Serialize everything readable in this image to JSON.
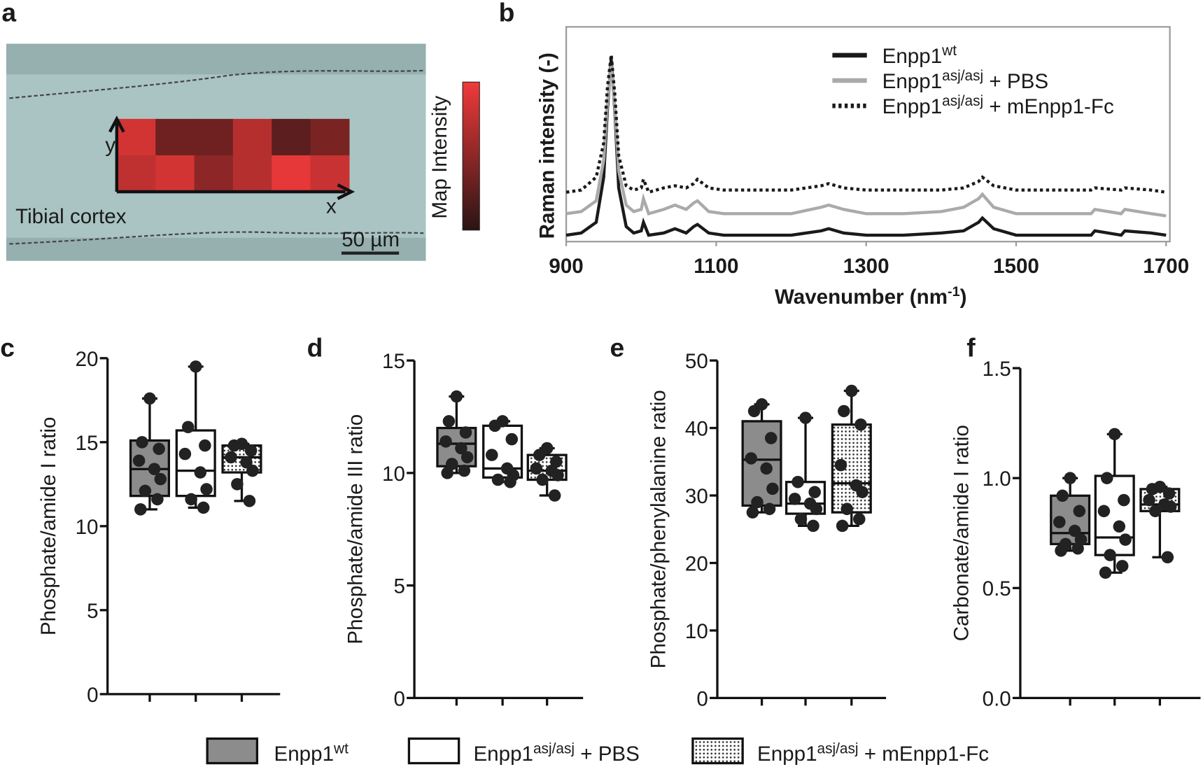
{
  "chart_data": [
    {
      "type": "heatmap",
      "label": "a",
      "annotations": {
        "axis_x": "x",
        "axis_y": "y",
        "tissue": "Tibial cortex",
        "scale": "50 µm",
        "colorbar": "Map Intensity"
      },
      "values": [
        [
          0.85,
          0.35,
          0.35,
          0.7,
          0.25,
          0.4
        ],
        [
          0.75,
          0.85,
          0.5,
          0.7,
          0.95,
          0.8
        ]
      ],
      "colors": [
        "#2a1414",
        "#f03a3a"
      ]
    },
    {
      "type": "line",
      "label": "b",
      "y_label": "Raman intensity (-)",
      "x_label": {
        "text": "Wavenumber (nm",
        "sup": "-1",
        "suffix": ")"
      },
      "xlim": [
        900,
        1705
      ],
      "xticks": [
        900,
        1100,
        1300,
        1500,
        1700
      ],
      "ylim": [
        0,
        1
      ],
      "x": [
        900,
        920,
        940,
        950,
        955,
        960,
        965,
        970,
        980,
        990,
        1000,
        1003,
        1010,
        1030,
        1045,
        1060,
        1070,
        1075,
        1090,
        1110,
        1150,
        1200,
        1240,
        1250,
        1270,
        1300,
        1350,
        1400,
        1430,
        1450,
        1455,
        1470,
        1500,
        1550,
        1600,
        1605,
        1640,
        1645,
        1680,
        1700
      ],
      "series": [
        {
          "name": "Enpp1",
          "sup": "wt",
          "suffix": "",
          "color": "#1a1a1a",
          "style": "solid",
          "values": [
            0.03,
            0.04,
            0.09,
            0.3,
            0.62,
            0.85,
            0.6,
            0.25,
            0.07,
            0.04,
            0.05,
            0.09,
            0.03,
            0.04,
            0.06,
            0.04,
            0.07,
            0.08,
            0.04,
            0.03,
            0.03,
            0.03,
            0.05,
            0.06,
            0.04,
            0.03,
            0.03,
            0.04,
            0.05,
            0.09,
            0.11,
            0.06,
            0.03,
            0.03,
            0.03,
            0.05,
            0.03,
            0.05,
            0.04,
            0.03
          ]
        },
        {
          "name": "Enpp1",
          "sup": "asj/asj",
          "suffix": " + PBS",
          "color": "#aaaaaa",
          "style": "solid",
          "values": [
            0.13,
            0.14,
            0.19,
            0.38,
            0.65,
            0.82,
            0.62,
            0.33,
            0.17,
            0.14,
            0.15,
            0.2,
            0.13,
            0.15,
            0.17,
            0.15,
            0.18,
            0.19,
            0.14,
            0.13,
            0.13,
            0.13,
            0.16,
            0.17,
            0.15,
            0.13,
            0.13,
            0.14,
            0.16,
            0.2,
            0.22,
            0.16,
            0.13,
            0.13,
            0.13,
            0.15,
            0.13,
            0.15,
            0.13,
            0.12
          ]
        },
        {
          "name": "Enpp1",
          "sup": "asj/asj",
          "suffix": " + mEnpp1-Fc",
          "color": "#1a1a1a",
          "style": "dotted",
          "values": [
            0.23,
            0.24,
            0.3,
            0.46,
            0.72,
            0.87,
            0.68,
            0.4,
            0.26,
            0.24,
            0.25,
            0.29,
            0.23,
            0.25,
            0.26,
            0.25,
            0.27,
            0.29,
            0.25,
            0.24,
            0.24,
            0.24,
            0.26,
            0.27,
            0.25,
            0.24,
            0.24,
            0.24,
            0.25,
            0.28,
            0.3,
            0.26,
            0.24,
            0.24,
            0.24,
            0.25,
            0.24,
            0.25,
            0.24,
            0.23
          ]
        }
      ]
    },
    {
      "type": "box",
      "label": "c",
      "y_label": "Phosphate/amide I ratio",
      "ylim": [
        0,
        20
      ],
      "yticks": [
        0,
        5,
        10,
        15,
        20
      ],
      "groups": [
        {
          "fill": "#8c8c8c",
          "min": 11,
          "q1": 11.8,
          "median": 13.4,
          "q3": 15.1,
          "max": 17.6,
          "points": [
            17.6,
            15,
            14.6,
            13.9,
            13.4,
            12.8,
            12.1,
            11.6,
            11
          ]
        },
        {
          "fill": "#ffffff",
          "min": 11.1,
          "q1": 11.8,
          "median": 13.3,
          "q3": 15.7,
          "max": 19.5,
          "points": [
            19.5,
            15.9,
            14.8,
            14.3,
            13.2,
            12.2,
            11.6,
            11.1
          ]
        },
        {
          "fill": "dots",
          "min": 11.5,
          "q1": 13.2,
          "median": 14.1,
          "q3": 14.8,
          "max": 14.9,
          "points": [
            14.9,
            14.8,
            14.5,
            14.1,
            13.8,
            13.3,
            12.5,
            11.5
          ]
        }
      ]
    },
    {
      "type": "box",
      "label": "d",
      "y_label": "Phosphate/amide III ratio",
      "ylim": [
        0,
        15
      ],
      "yticks": [
        0,
        5,
        10,
        15
      ],
      "groups": [
        {
          "fill": "#8c8c8c",
          "min": 10,
          "q1": 10.3,
          "median": 11.3,
          "q3": 12,
          "max": 13.4,
          "points": [
            13.4,
            12.3,
            11.8,
            11.4,
            11.1,
            10.7,
            10.4,
            10.1,
            10
          ]
        },
        {
          "fill": "#ffffff",
          "min": 9.6,
          "q1": 9.8,
          "median": 10.2,
          "q3": 12.1,
          "max": 12.3,
          "points": [
            12.3,
            12.1,
            11.5,
            10.8,
            10.2,
            9.9,
            9.7,
            9.6
          ]
        },
        {
          "fill": "dots",
          "min": 9,
          "q1": 9.7,
          "median": 10.1,
          "q3": 10.8,
          "max": 11.1,
          "points": [
            11.1,
            10.8,
            10.5,
            10.2,
            10.1,
            9.9,
            9.7,
            9
          ]
        }
      ]
    },
    {
      "type": "box",
      "label": "e",
      "y_label": "Phosphate/phenylalanine ratio",
      "ylim": [
        0,
        50
      ],
      "yticks": [
        0,
        10,
        20,
        30,
        40,
        50
      ],
      "groups": [
        {
          "fill": "#8c8c8c",
          "min": 27.5,
          "q1": 28.5,
          "median": 35.3,
          "q3": 41,
          "max": 43.5,
          "points": [
            43.5,
            42.5,
            38.5,
            35.5,
            34,
            31,
            29,
            28,
            27.5
          ]
        },
        {
          "fill": "#ffffff",
          "min": 25.5,
          "q1": 27.3,
          "median": 28.8,
          "q3": 32,
          "max": 41.5,
          "points": [
            41.5,
            32,
            30.5,
            29.5,
            28.8,
            28,
            26.5,
            25.5
          ]
        },
        {
          "fill": "dots",
          "min": 25.5,
          "q1": 27.5,
          "median": 31.8,
          "q3": 40.5,
          "max": 45.5,
          "points": [
            45.5,
            42.5,
            40.5,
            34.5,
            31.5,
            30.5,
            28,
            26.5,
            25.5
          ]
        }
      ]
    },
    {
      "type": "box",
      "label": "f",
      "y_label": "Carbonate/amide I ratio",
      "ylim": [
        0,
        1.5
      ],
      "yticks": [
        {
          "value": 0,
          "label": "0.0"
        },
        0.5,
        {
          "value": 1,
          "label": "1.0"
        },
        1.5
      ],
      "groups": [
        {
          "fill": "#8c8c8c",
          "min": 0.67,
          "q1": 0.7,
          "median": 0.75,
          "q3": 0.92,
          "max": 1.0,
          "points": [
            1.0,
            0.92,
            0.85,
            0.8,
            0.76,
            0.72,
            0.7,
            0.68,
            0.67
          ]
        },
        {
          "fill": "#ffffff",
          "min": 0.57,
          "q1": 0.65,
          "median": 0.73,
          "q3": 1.01,
          "max": 1.2,
          "points": [
            1.2,
            1.0,
            0.9,
            0.85,
            0.78,
            0.72,
            0.65,
            0.6,
            0.57
          ]
        },
        {
          "fill": "dots",
          "min": 0.64,
          "q1": 0.85,
          "median": 0.88,
          "q3": 0.95,
          "max": 0.96,
          "points": [
            0.96,
            0.95,
            0.93,
            0.9,
            0.88,
            0.87,
            0.85,
            0.64
          ]
        }
      ]
    }
  ],
  "legend": [
    {
      "name": "Enpp1",
      "sup": "wt",
      "suffix": "",
      "fill": "#8c8c8c"
    },
    {
      "name": "Enpp1",
      "sup": "asj/asj",
      "suffix": " + PBS",
      "fill": "#ffffff"
    },
    {
      "name": "Enpp1",
      "sup": "asj/asj",
      "suffix": " + mEnpp1-Fc",
      "fill": "dots"
    }
  ]
}
